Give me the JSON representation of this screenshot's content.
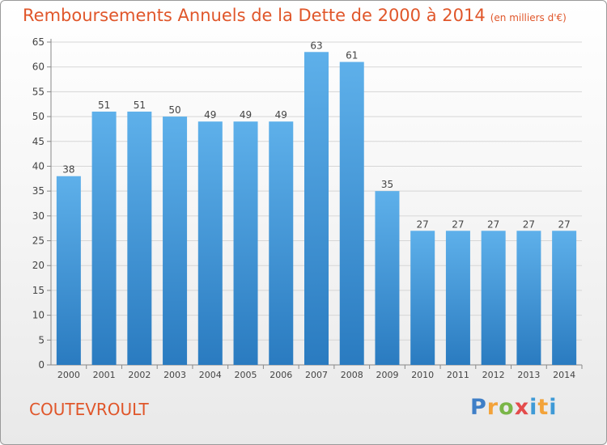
{
  "title": "Remboursements Annuels de la Dette de 2000 à 2014",
  "unit": "(en milliers d'€)",
  "commune": "COUTEVROULT",
  "logo": "Proxiti",
  "colors": {
    "title": "#e0562a",
    "bar_light": "#5eb0ea",
    "bar_dark": "#2a7bc0"
  },
  "chart_data": {
    "type": "bar",
    "title": "Remboursements Annuels de la Dette de 2000 à 2014",
    "xlabel": "",
    "ylabel": "",
    "categories": [
      "2000",
      "2001",
      "2002",
      "2003",
      "2004",
      "2005",
      "2006",
      "2007",
      "2008",
      "2009",
      "2010",
      "2011",
      "2012",
      "2013",
      "2014"
    ],
    "values": [
      38,
      51,
      51,
      50,
      49,
      49,
      49,
      63,
      61,
      35,
      27,
      27,
      27,
      27,
      27
    ],
    "ylim": [
      0,
      65
    ],
    "yticks": [
      0,
      5,
      10,
      15,
      20,
      25,
      30,
      35,
      40,
      45,
      50,
      55,
      60,
      65
    ],
    "grid": true,
    "data_labels": true
  }
}
